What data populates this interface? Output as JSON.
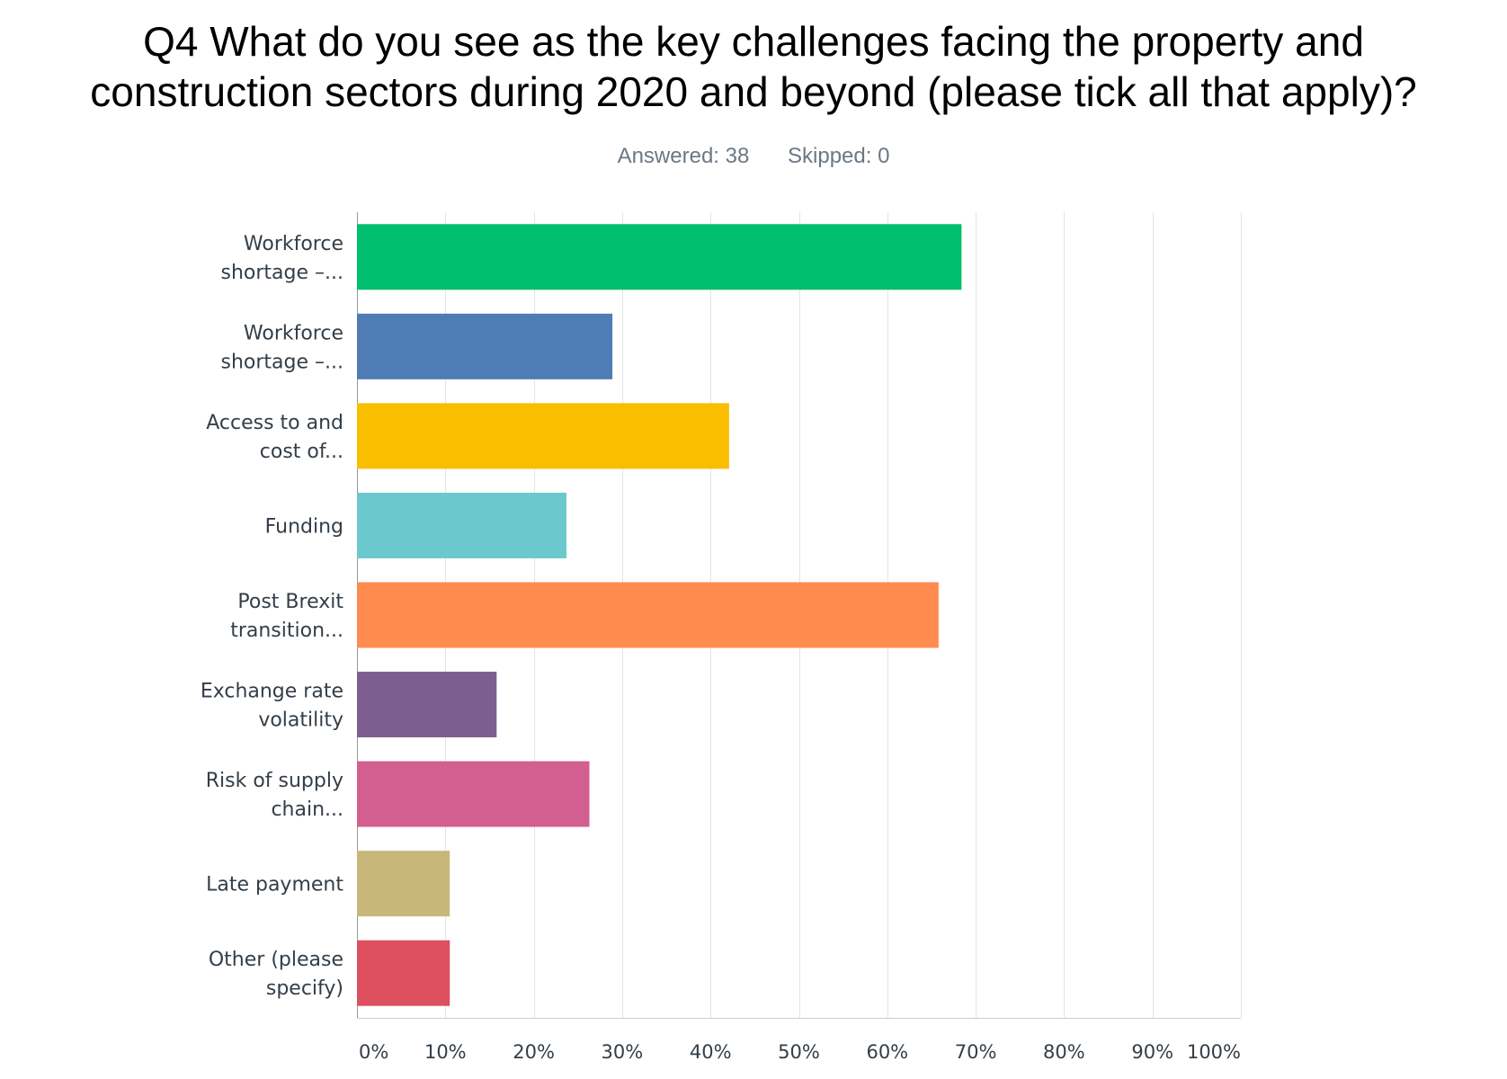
{
  "title_lines": [
    "Q4 What do you see as the key challenges facing the property and",
    "construction sectors during 2020 and beyond (please tick all that apply)?"
  ],
  "stats": {
    "answered": "Answered: 38",
    "skipped": "Skipped: 0"
  },
  "chart_data": {
    "type": "bar",
    "orientation": "horizontal",
    "title": "Q4 What do you see as the key challenges facing the property and construction sectors during 2020 and beyond (please tick all that apply)?",
    "categories": [
      [
        "Workforce",
        "shortage –..."
      ],
      [
        "Workforce",
        "shortage –..."
      ],
      [
        "Access to and",
        "cost of..."
      ],
      [
        "Funding"
      ],
      [
        "Post Brexit",
        "transition..."
      ],
      [
        "Exchange rate",
        "volatility"
      ],
      [
        "Risk of supply",
        "chain..."
      ],
      [
        "Late payment"
      ],
      [
        "Other (please",
        "specify)"
      ]
    ],
    "values": [
      68.4,
      28.9,
      42.1,
      23.7,
      65.8,
      15.8,
      26.3,
      10.5,
      10.5
    ],
    "colors": [
      "#00bf6f",
      "#507cb6",
      "#f9be00",
      "#6bc8cd",
      "#ff8b4f",
      "#7d5e90",
      "#d25f90",
      "#c7b879",
      "#de4f5f"
    ],
    "xlim": [
      0,
      100
    ],
    "ticks": [
      "0%",
      "10%",
      "20%",
      "30%",
      "40%",
      "50%",
      "60%",
      "70%",
      "80%",
      "90%",
      "100%"
    ],
    "grid": true
  }
}
